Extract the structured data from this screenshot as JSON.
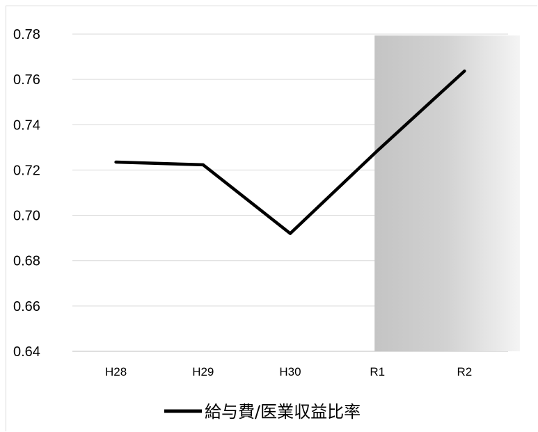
{
  "chart_data": {
    "type": "line",
    "categories": [
      "H28",
      "H29",
      "H30",
      "R1",
      "R2"
    ],
    "series": [
      {
        "name": "給与費/医業収益比率",
        "values": [
          0.7235,
          0.7223,
          0.692,
          0.7285,
          0.7637
        ],
        "color": "#000000"
      }
    ],
    "ylim": [
      0.64,
      0.78
    ],
    "yticks": [
      "0.64",
      "0.66",
      "0.68",
      "0.70",
      "0.72",
      "0.74",
      "0.76",
      "0.78"
    ],
    "grid": true,
    "legend": "bottom",
    "highlight": {
      "from_category": "R1",
      "to": "end",
      "color": "#c8c8c8"
    }
  }
}
